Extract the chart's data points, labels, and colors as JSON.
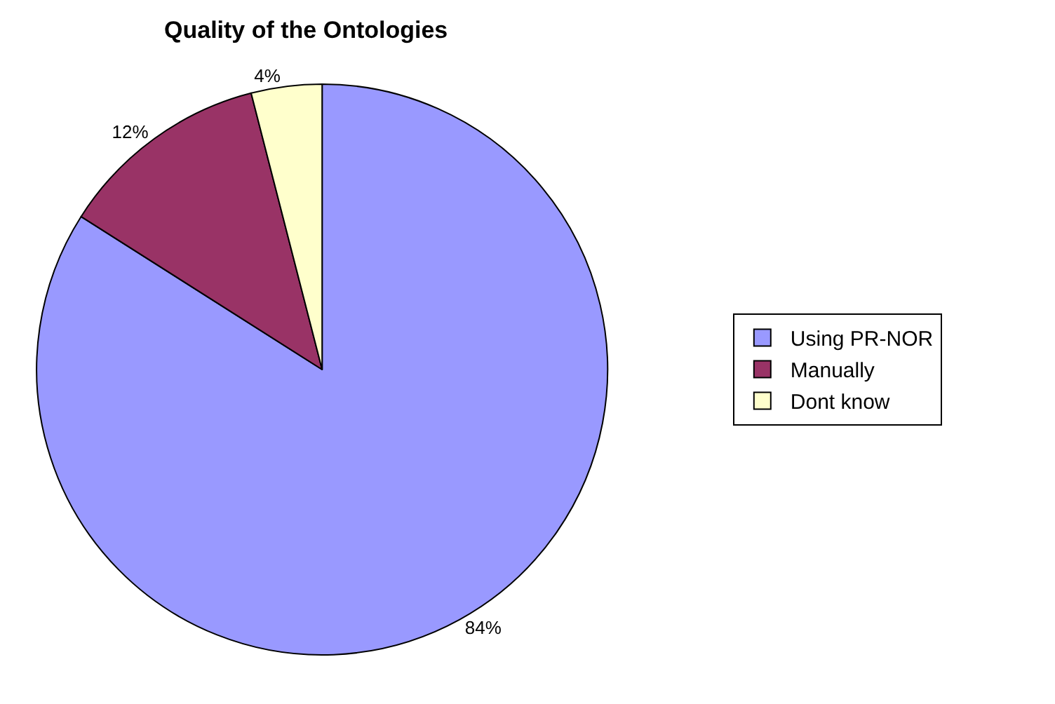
{
  "chart_data": {
    "type": "pie",
    "title": "Quality of the Ontologies",
    "categories": [
      "Using PR-NOR",
      "Manually",
      "Dont know"
    ],
    "values": [
      84,
      12,
      4
    ],
    "colors": [
      "#9999ff",
      "#993366",
      "#ffffcc"
    ],
    "value_labels": [
      "84%",
      "12%",
      "4%"
    ],
    "legend": "right"
  }
}
